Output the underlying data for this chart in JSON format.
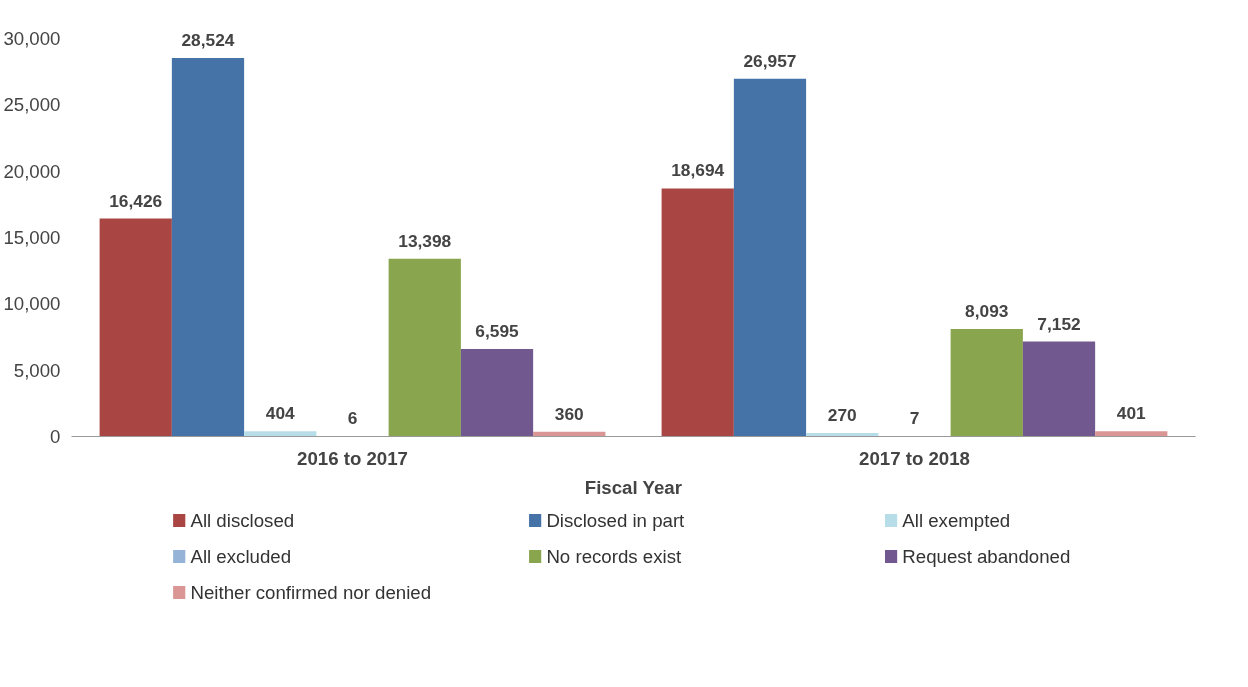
{
  "chart_data": {
    "type": "bar",
    "xlabel": "Fiscal Year",
    "categories": [
      "2016 to 2017",
      "2017 to 2018"
    ],
    "series": [
      {
        "name": "All disclosed",
        "color": "#a94643",
        "values": [
          16426,
          18694
        ],
        "value_labels": [
          "16,426",
          "18,694"
        ]
      },
      {
        "name": "Disclosed in part",
        "color": "#4573a7",
        "values": [
          28524,
          26957
        ],
        "value_labels": [
          "28,524",
          "26,957"
        ]
      },
      {
        "name": "All exempted",
        "color": "#b7dee8",
        "values": [
          404,
          270
        ],
        "value_labels": [
          "404",
          "270"
        ]
      },
      {
        "name": "All excluded",
        "color": "#95b3d7",
        "values": [
          6,
          7
        ],
        "value_labels": [
          "6",
          "7"
        ]
      },
      {
        "name": "No records exist",
        "color": "#89a54e",
        "values": [
          13398,
          8093
        ],
        "value_labels": [
          "13,398",
          "8,093"
        ]
      },
      {
        "name": "Request abandoned",
        "color": "#71588f",
        "values": [
          6595,
          7152
        ],
        "value_labels": [
          "6,595",
          "7,152"
        ]
      },
      {
        "name": "Neither confirmed nor denied",
        "color": "#d99694",
        "values": [
          360,
          401
        ],
        "value_labels": [
          "360",
          "401"
        ]
      }
    ],
    "ylim": [
      0,
      30000
    ],
    "yticks": [
      {
        "value": 0,
        "label": "0"
      },
      {
        "value": 5000,
        "label": "5,000"
      },
      {
        "value": 10000,
        "label": "10,000"
      },
      {
        "value": 15000,
        "label": "15,000"
      },
      {
        "value": 20000,
        "label": "20,000"
      },
      {
        "value": 25000,
        "label": "25,000"
      },
      {
        "value": 30000,
        "label": "30,000"
      }
    ],
    "grid": false,
    "legend": "bottom"
  }
}
